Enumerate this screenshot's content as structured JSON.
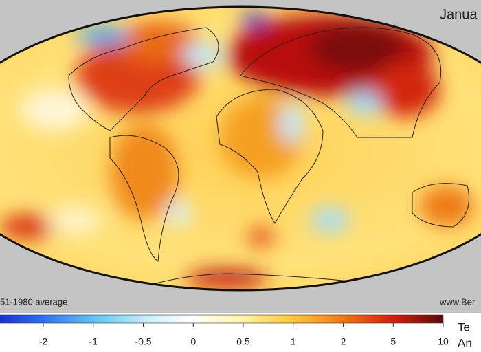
{
  "title": "Janua",
  "footer_left": "51-1980 average",
  "footer_right": "www.Ber",
  "legend": {
    "title_lines": [
      "Te",
      "An"
    ],
    "ticks": [
      -2,
      -1,
      -0.5,
      0,
      0.5,
      1,
      2,
      5,
      10
    ]
  }
}
